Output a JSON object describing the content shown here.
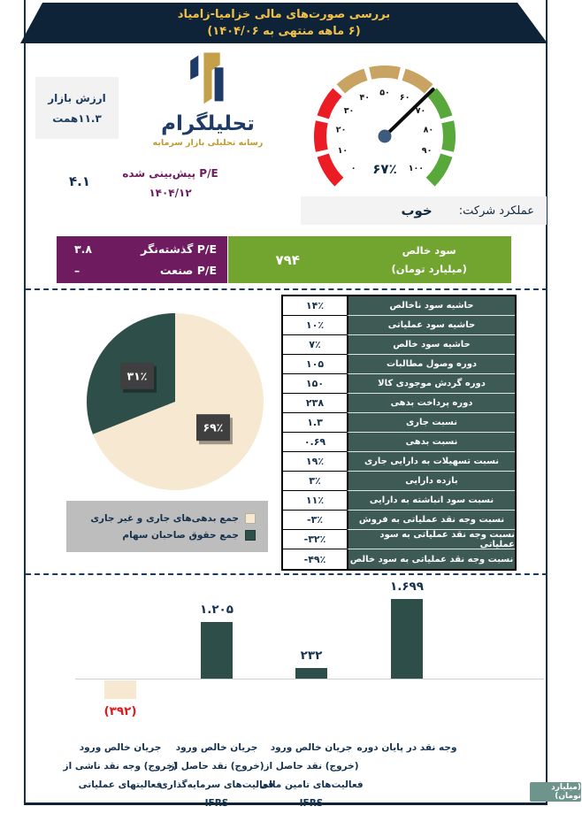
{
  "header": {
    "title": "بررسی صورت‌های مالی خزامیا-زامیاد",
    "subtitle": "(۶ ماهه منتهی به ۱۴۰۴/۰۶)"
  },
  "logo": {
    "name": "تحلیلگرام",
    "tagline": "رسانه تحلیلی بازار سرمایه"
  },
  "market_value": {
    "label": "ارزش بازار",
    "value": "۱۱.۳همت"
  },
  "performance": {
    "label": "عملکرد شرکت:",
    "value": "خوب"
  },
  "pe": {
    "forecast_label": "P/E پیش‌بینی شده",
    "forecast_date": "۱۴۰۴/۱۲",
    "forecast_value": "۴.۱",
    "trailing_label": "P/E گذشته‌نگر",
    "trailing_value": "۳.۸",
    "industry_label": "P/E صنعت",
    "industry_value": "–"
  },
  "net_profit": {
    "label_line1": "سود خالص",
    "label_line2": "(میلیارد تومان)",
    "value": "۷۹۴"
  },
  "unit_badge": "(میلیارد تومان)",
  "colors": {
    "navy": "#0e2337",
    "gold": "#f2c14a",
    "purple": "#6e1b60",
    "green_box": "#71a52f",
    "table_header": "#3e5a55",
    "pie_cream": "#f7e8d2",
    "pie_teal": "#2e4e49",
    "gauge_red": "#ec1c24",
    "gauge_tan": "#c8a362",
    "gauge_green": "#58a83b",
    "negative_red": "#e0191f",
    "badge_green": "#6f948b"
  },
  "chart_data": [
    {
      "type": "gauge",
      "title": "عملکرد شرکت",
      "value": 67,
      "display": "۶۷٪",
      "min": 0,
      "max": 100,
      "tick_labels": [
        "۰",
        "۱۰",
        "۲۰",
        "۳۰",
        "۴۰",
        "۵۰",
        "۶۰",
        "۷۰",
        "۸۰",
        "۹۰",
        "۱۰۰"
      ],
      "zones": [
        {
          "from": 0,
          "to": 33,
          "color": "#ec1c24"
        },
        {
          "from": 33,
          "to": 66,
          "color": "#c8a362"
        },
        {
          "from": 66,
          "to": 100,
          "color": "#58a83b"
        }
      ]
    },
    {
      "type": "pie",
      "slices": [
        {
          "label": "جمع بدهی‌های جاری و غیر جاری",
          "value": 69,
          "display": "۶۹٪",
          "color": "#f7e8d2"
        },
        {
          "label": "جمع حقوق صاحبان سهام",
          "value": 31,
          "display": "۳۱٪",
          "color": "#2e4e49"
        }
      ]
    },
    {
      "type": "bar",
      "unit": "(میلیارد تومان)",
      "ylim": [
        -392,
        1699
      ],
      "bars": [
        {
          "label_lines": [
            "وجه نقد در پایان دوره"
          ],
          "value": 1699,
          "display": "۱.۶۹۹",
          "color": "#2e4e49"
        },
        {
          "label_lines": [
            "جریان خالص ورود",
            "(خروج) نقد حاصل از",
            "فعالیت‌های تامین مالی",
            "IFRS"
          ],
          "value": 232,
          "display": "۲۳۲",
          "color": "#2e4e49"
        },
        {
          "label_lines": [
            "جریان خالص ورود",
            "(خروج) نقد حاصل از",
            "فعالیت‌های سرمایه‌گذاری",
            "IFRS"
          ],
          "value": 1205,
          "display": "۱.۲۰۵",
          "color": "#2e4e49"
        },
        {
          "label_lines": [
            "جریان خالص ورود",
            "(خروج) وجه نقد ناشی از",
            "فعالیتهای عملیاتی"
          ],
          "value": -392,
          "display": "(۳۹۲)",
          "color": "#f7e8d2",
          "value_color": "#e0191f"
        }
      ]
    },
    {
      "type": "table",
      "rows": [
        {
          "label": "حاشیه سود ناخالص",
          "value": "۱۴٪"
        },
        {
          "label": "حاشیه سود عملیاتی",
          "value": "۱۰٪"
        },
        {
          "label": "حاشیه سود خالص",
          "value": "۷٪"
        },
        {
          "label": "دوره وصول مطالبات",
          "value": "۱۰۵"
        },
        {
          "label": "دوره گردش موجودی کالا",
          "value": "۱۵۰"
        },
        {
          "label": "دوره پرداخت بدهی",
          "value": "۲۳۸"
        },
        {
          "label": "نسبت جاری",
          "value": "۱.۳"
        },
        {
          "label": "نسبت بدهی",
          "value": "۰.۶۹"
        },
        {
          "label": "نسبت تسهیلات به دارایی جاری",
          "value": "۱۹٪"
        },
        {
          "label": "بازده دارایی",
          "value": "۳٪"
        },
        {
          "label": "نسبت سود انباشته به دارایی",
          "value": "۱۱٪"
        },
        {
          "label": "نسبت وجه نقد عملیاتی به فروش",
          "value": "-۳٪"
        },
        {
          "label": "نسبت وجه نقد عملیاتی به سود عملیاتی",
          "value": "-۳۲٪"
        },
        {
          "label": "نسبت وجه نقد عملیاتی به سود خالص",
          "value": "-۴۹٪"
        }
      ]
    }
  ]
}
